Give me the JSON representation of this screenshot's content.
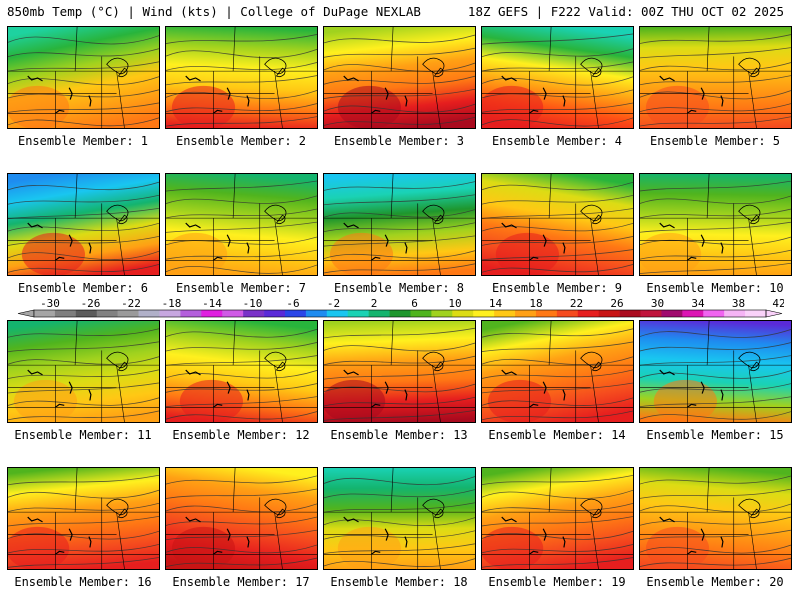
{
  "header": {
    "left": "850mb Temp (°C) | Wind (kts) | College of DuPage NEXLAB",
    "right": "18Z GEFS | F222 Valid: 00Z THU OCT 02 2025"
  },
  "member_label_prefix": "Ensemble Member:",
  "members": [
    {
      "number": 1,
      "theme": "mixed"
    },
    {
      "number": 2,
      "theme": "warm-southwest"
    },
    {
      "number": 3,
      "theme": "warm-west"
    },
    {
      "number": 4,
      "theme": "cool-north"
    },
    {
      "number": 5,
      "theme": "mild"
    },
    {
      "number": 6,
      "theme": "cool-northeast"
    },
    {
      "number": 7,
      "theme": "green-north"
    },
    {
      "number": 8,
      "theme": "cool-northwest"
    },
    {
      "number": 9,
      "theme": "warm-center"
    },
    {
      "number": 10,
      "theme": "green-north"
    },
    {
      "number": 11,
      "theme": "green"
    },
    {
      "number": 12,
      "theme": "warm-southwest"
    },
    {
      "number": 13,
      "theme": "warm-west"
    },
    {
      "number": 14,
      "theme": "warm"
    },
    {
      "number": 15,
      "theme": "cold-north"
    },
    {
      "number": 16,
      "theme": "warm"
    },
    {
      "number": 17,
      "theme": "hot"
    },
    {
      "number": 18,
      "theme": "green-center"
    },
    {
      "number": 19,
      "theme": "warm"
    },
    {
      "number": 20,
      "theme": "mild"
    }
  ],
  "colorbar": {
    "ticks": [
      "-30",
      "-26",
      "-22",
      "-18",
      "-14",
      "-10",
      "-6",
      "-2",
      "2",
      "6",
      "10",
      "14",
      "18",
      "22",
      "26",
      "30",
      "34",
      "38",
      "42"
    ],
    "colors": [
      "#a5a5a5",
      "#7f7f7f",
      "#5c5c5c",
      "#828282",
      "#9a9a9a",
      "#b0b0c8",
      "#c7a7e0",
      "#b45fdc",
      "#e01fe0",
      "#d05ae6",
      "#7a32c8",
      "#5a2ad8",
      "#2a46e8",
      "#1e8cf0",
      "#19c6f0",
      "#1ad2b4",
      "#14b46e",
      "#1e962d",
      "#50b41e",
      "#a0d21e",
      "#dcdc14",
      "#fff01e",
      "#ffc814",
      "#ffa014",
      "#ff7814",
      "#f54b1e",
      "#e61e1e",
      "#c81414",
      "#aa0a1e",
      "#c0143c",
      "#a00a6e",
      "#dc14b4",
      "#f064f0",
      "#f5b4f5",
      "#fad2fa"
    ]
  }
}
